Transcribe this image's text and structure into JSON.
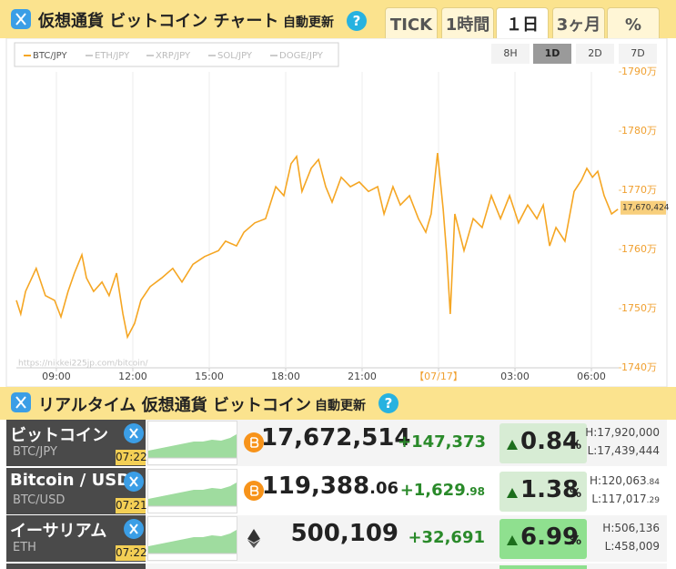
{
  "header": {
    "title": "仮想通貨 ビットコイン チャート",
    "auto_update": "自動更新",
    "help": "?",
    "tabs": [
      "TICK",
      "1時間",
      "１日",
      "3ヶ月",
      "%"
    ],
    "active_tab": 2
  },
  "chart_data": {
    "type": "line",
    "x": [
      7.43,
      7.6,
      7.79,
      8.21,
      8.57,
      8.93,
      9.18,
      9.46,
      9.71,
      10,
      10.18,
      10.46,
      10.79,
      11.07,
      11.36,
      11.61,
      11.79,
      12.07,
      12.32,
      12.68,
      13.14,
      13.57,
      13.93,
      14.36,
      14.82,
      15.36,
      15.64,
      16.07,
      16.36,
      16.79,
      17.21,
      17.61,
      17.93,
      18.21,
      18.43,
      18.64,
      19,
      19.29,
      19.57,
      19.82,
      20.18,
      20.54,
      20.89,
      21.25,
      21.61,
      21.86,
      22.21,
      22.5,
      22.86,
      23.21,
      23.5,
      23.71,
      23.96,
      24.18,
      24.32,
      24.46,
      24.64,
      25,
      25.36,
      25.71,
      26.07,
      26.43,
      26.79,
      27.14,
      27.5,
      27.86,
      28.11,
      28.36,
      28.61,
      28.96,
      29.32,
      29.61,
      29.82,
      30.04,
      30.25,
      30.5,
      30.79,
      31.04
    ],
    "series": [
      {
        "name": "BTC/JPY",
        "color": "#f5a623",
        "values": [
          1751.4,
          1749.1,
          1752.9,
          1756.8,
          1752.2,
          1751.4,
          1748.6,
          1752.9,
          1756,
          1759.1,
          1755.2,
          1752.9,
          1754.5,
          1752.2,
          1756,
          1749.1,
          1745.2,
          1747.5,
          1751.4,
          1753.7,
          1755.2,
          1756.8,
          1754.5,
          1757.5,
          1758.8,
          1759.8,
          1761.4,
          1760.6,
          1762.9,
          1764.5,
          1765.2,
          1770.6,
          1769.1,
          1774.5,
          1775.7,
          1769.8,
          1773.7,
          1775.2,
          1770.6,
          1768,
          1772.2,
          1770.6,
          1771.4,
          1769.8,
          1770.6,
          1766,
          1770.6,
          1767.5,
          1769.1,
          1765.2,
          1762.9,
          1766,
          1776.3,
          1766.8,
          1759.1,
          1749.1,
          1766,
          1759.8,
          1765.2,
          1763.7,
          1769.1,
          1765.2,
          1769.1,
          1764.5,
          1767.5,
          1765.2,
          1767.5,
          1760.6,
          1763.7,
          1761.4,
          1769.8,
          1771.7,
          1773.7,
          1772.2,
          1773.2,
          1769.1,
          1766,
          1766.8
        ]
      },
      {
        "name": "ETH/JPY",
        "color": "#cccccc",
        "visible": false
      },
      {
        "name": "XRP/JPY",
        "color": "#cccccc",
        "visible": false
      },
      {
        "name": "SOL/JPY",
        "color": "#cccccc",
        "visible": false
      },
      {
        "name": "DOGE/JPY",
        "color": "#cccccc",
        "visible": false
      }
    ],
    "xlim": [
      7.43,
      31.07
    ],
    "xticks": [
      {
        "value": 9,
        "label": "09:00"
      },
      {
        "value": 12,
        "label": "12:00"
      },
      {
        "value": 15,
        "label": "15:00"
      },
      {
        "value": 18,
        "label": "18:00"
      },
      {
        "value": 21,
        "label": "21:00"
      },
      {
        "value": 24,
        "label": "【07/17】"
      },
      {
        "value": 27,
        "label": "03:00"
      },
      {
        "value": 30,
        "label": "06:00"
      }
    ],
    "date_tick": 5,
    "ylim": [
      1740,
      1790
    ],
    "yticks": [
      {
        "value": 1740,
        "label": "1740万"
      },
      {
        "value": 1750,
        "label": "1750万"
      },
      {
        "value": 1760,
        "label": "1760万"
      },
      {
        "value": 1770,
        "label": "1770万"
      },
      {
        "value": 1780,
        "label": "1780万"
      },
      {
        "value": 1790,
        "label": "1790万"
      }
    ],
    "grid": "x",
    "current_value": {
      "value": 1767.0424,
      "label": "17,670,424"
    },
    "ranges": [
      "8H",
      "1D",
      "2D",
      "7D"
    ],
    "active_range": 1,
    "watermark": "https://nikkei225jp.com/bitcoin/"
  },
  "table": {
    "title": "リアルタイム 仮想通貨 ビットコイン",
    "auto_update": "自動更新",
    "help": "?",
    "rows": [
      {
        "name": "ビットコイン",
        "code": "BTC/JPY",
        "time": "07:22",
        "price": "17,672,514",
        "change": "+147,373",
        "pct": "0.84",
        "pct_unit": "%",
        "high": "H:17,920,000",
        "low": "L:17,439,444"
      },
      {
        "name": "Bitcoin / USD",
        "code": "BTC/USD",
        "time": "07:21",
        "price": "119,388",
        "price_decimals": ".06",
        "change": "+1,629",
        "change_decimals": ".98",
        "pct": "1.38",
        "pct_unit": "%",
        "high": "H:120,063",
        "high_decimals": ".84",
        "low": "L:117,017",
        "low_decimals": ".29"
      },
      {
        "name": "イーサリアム",
        "code": "ETH",
        "time": "07:22",
        "price": "500,109",
        "change": "+32,691",
        "pct": "6.99",
        "pct_unit": "%",
        "high": "H:506,136",
        "low": "L:458,009"
      }
    ]
  }
}
